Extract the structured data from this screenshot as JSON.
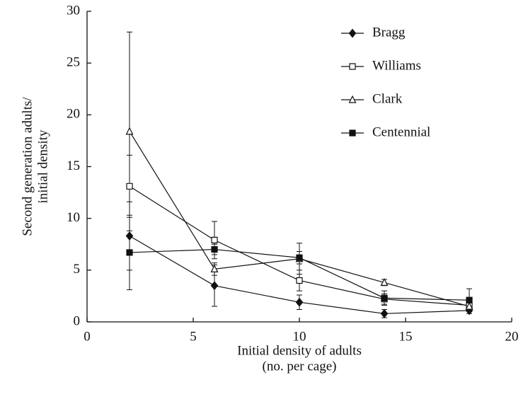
{
  "chart_data": {
    "type": "line",
    "x_label": [
      "Initial density of adults",
      "(no. per cage)"
    ],
    "y_label": [
      "Second generation adults/",
      "initial density"
    ],
    "x": [
      2,
      6,
      10,
      14,
      18
    ],
    "xlim": [
      0,
      20
    ],
    "xticks": [
      0,
      5,
      10,
      15,
      20
    ],
    "ylim": [
      0,
      30
    ],
    "yticks": [
      0,
      5,
      10,
      15,
      20,
      25,
      30
    ],
    "legend": "upper right",
    "series": [
      {
        "name": "Bragg",
        "color": "#111111",
        "marker": "diamond",
        "filled": true,
        "values": [
          8.3,
          3.5,
          1.9,
          0.8,
          1.1
        ],
        "errors": [
          3.3,
          2.0,
          0.7,
          0.4,
          0.3
        ]
      },
      {
        "name": "Williams",
        "color": "#111111",
        "marker": "square",
        "filled": false,
        "values": [
          13.1,
          7.9,
          4.0,
          2.2,
          1.6
        ],
        "errors": [
          3.0,
          1.8,
          1.0,
          0.5,
          0.3
        ]
      },
      {
        "name": "Clark",
        "color": "#111111",
        "marker": "triangle",
        "filled": false,
        "values": [
          18.4,
          5.1,
          6.1,
          3.8,
          1.5
        ],
        "errors": [
          9.6,
          0.6,
          1.5,
          0.3,
          0.3
        ]
      },
      {
        "name": "Centennial",
        "color": "#111111",
        "marker": "square",
        "filled": true,
        "values": [
          6.7,
          7.0,
          6.2,
          2.3,
          2.1
        ],
        "errors": [
          3.6,
          0.5,
          0.6,
          0.7,
          1.1
        ]
      }
    ]
  }
}
